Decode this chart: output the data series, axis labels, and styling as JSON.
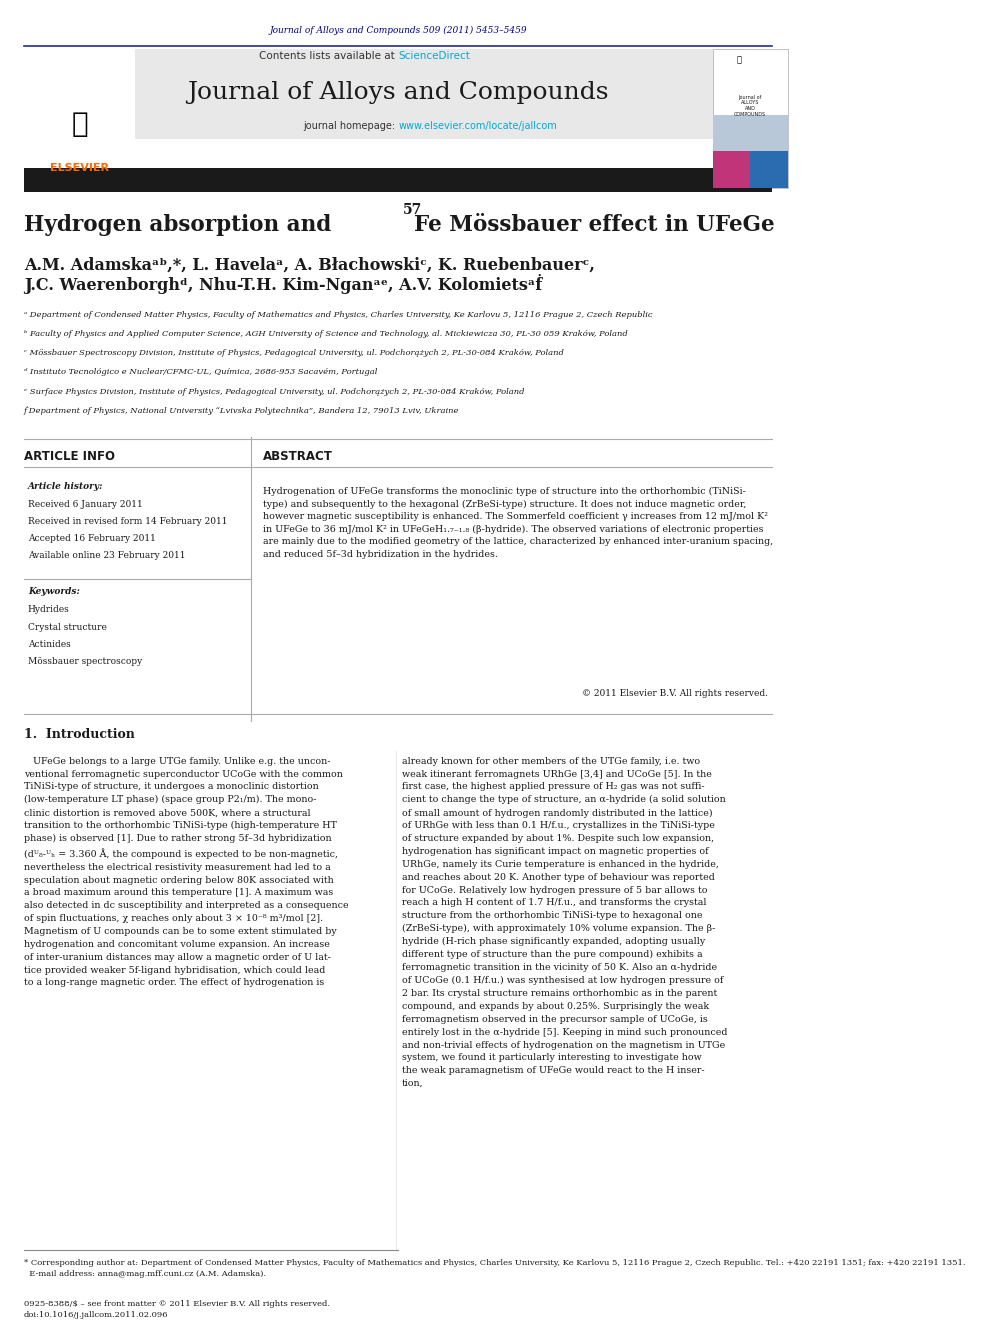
{
  "page_width": 9.92,
  "page_height": 13.23,
  "background_color": "#ffffff",
  "journal_ref_text": "Journal of Alloys and Compounds 509 (2011) 5453–5459",
  "journal_ref_color": "#00008B",
  "contents_text": "Contents lists available at",
  "sciencedirect_text": "ScienceDirect",
  "sciencedirect_color": "#00AADD",
  "journal_name": "Journal of Alloys and Compounds",
  "homepage_text": "journal homepage: ",
  "homepage_url": "www.elsevier.com/locate/jallcom",
  "homepage_url_color": "#00AADD",
  "header_bg": "#E8E8E8",
  "black_bar_color": "#1A1A1A",
  "elsevier_color": "#FF6600",
  "paper_title": "Hydrogen absorption and ⁵⁷Fe Mössbauer effect in UFeGe",
  "authors": "A.M. Adamskaᵃᵇ,*, L. Havelaᵃ, A. Błachowskiᶜ, K. Ruebenbauerᶜ,\nJ.C. Waerenborghᵈ, Nhu-T.H. Kim-Nganᵃᵉ, A.V. Kolomietsᵃḟ",
  "affiliations": [
    "ᵃ Department of Condensed Matter Physics, Faculty of Mathematics and Physics, Charles University, Ke Karlovu 5, 12116 Prague 2, Czech Republic",
    "ᵇ Faculty of Physics and Applied Computer Science, AGH University of Science and Technology, al. Mickiewicza 30, PL-30 059 Kraków, Poland",
    "ᶜ Mössbauer Spectroscopy Division, Institute of Physics, Pedagogical University, ul. Podchorążych 2, PL-30-084 Kraków, Poland",
    "ᵈ Instituto Tecnológico e Nuclear/CFMC-UL, Química, 2686-953 Sacavém, Portugal",
    "ᵉ Surface Physics Division, Institute of Physics, Pedagogical University, ul. Podchorążych 2, PL-30-084 Kraków, Poland",
    "ḟ Department of Physics, National University “Lvivska Polytechnika”, Bandera 12, 79013 Lviv, Ukraine"
  ],
  "article_info_title": "ARTICLE INFO",
  "abstract_title": "ABSTRACT",
  "article_history_title": "Article history:",
  "article_history": [
    "Received 6 January 2011",
    "Received in revised form 14 February 2011",
    "Accepted 16 February 2011",
    "Available online 23 February 2011"
  ],
  "keywords_title": "Keywords:",
  "keywords": [
    "Hydrides",
    "Crystal structure",
    "Actinides",
    "Mössbauer spectroscopy"
  ],
  "abstract_text": "Hydrogenation of UFeGe transforms the monoclinic type of structure into the orthorhombic (TiNiSi-type) and subsequently to the hexagonal (ZrBeSi-type) structure. It does not induce magnetic order, however magnetic susceptibility is enhanced. The Sommerfeld coefficient γ increases from 12 mJ/mol K² in UFeGe to 36 mJ/mol K² in UFeGeH₁.₇₋₁.₈ (β-hydride). The observed variations of electronic properties are mainly due to the modified geometry of the lattice, characterized by enhanced inter-uranium spacing, and reduced 5f–3d hybridization in the hydrides.",
  "copyright_text": "© 2011 Elsevier B.V. All rights reserved.",
  "intro_title": "1.  Introduction",
  "intro_col1": "UFe Ge belongs to a large UTGe family. Unlike e.g. the unconventional ferromagnetic superconductor UCoGe with the common TiNiSi-type of structure, it undergoes a monoclinic distortion (low-temperature LT phase) (space group P2₁/m). The monoclinic distortion is removed above 500K, where a structural transition to the orthorhombic TiNiSi-type (high-temperature HT phase) is observed [1]. Due to rather strong 5f–3d hybridization (dᵁ₈‐ᵁₕ = 3.360 Å, the compound is expected to be non-magnetic, nevertheless the electrical resistivity measurement had led to a speculation about magnetic ordering below 80K associated with a broad maximum around this temperature [1]. A maximum was also detected in dc susceptibility and interpreted as a consequence of spin fluctuations, χ reaches only about 3 × 10⁻⁸ m³/mol [2]. Magnetism of U compounds can be to some extent stimulated by hydrogenation and concomitant volume expansion. An increase of inter-uranium distances may allow a magnetic order of U lattice provided weaker 5f-ligand hybridisation, which could lead to a long-range magnetic order. The effect of hydrogenation is",
  "intro_col2": "already known for other members of the UTGe family, i.e. two weak itinerant ferromagnets URhGe [3,4] and UCoGe [5]. In the first case, the highest applied pressure of H₂ gas was not sufficient to change the type of structure, an α-hydride (a solid solution of small amount of hydrogen randomly distributed in the lattice) of URhGe with less than 0.1 H/f.u., crystallizes in the TiNiSi-type of structure expanded by about 1%. Despite such low expansion, hydrogenation has significant impact on magnetic properties of URhGe, namely its Curie temperature is enhanced in the hydride, and reaches about 20 K. Another type of behaviour was reported for UCoGe. Relatively low hydrogen pressure of 5 bar allows to reach a high H content of 1.7 H/f.u., and transforms the crystal structure from the orthorhombic TiNiSi-type to hexagonal one (ZrBeSi-type), with approximately 10% volume expansion. The β-hydride (H-rich phase significantly expanded, adopting usually different type of structure than the pure compound) exhibits a ferromagnetic transition in the vicinity of 50 K. Also an α-hydride of UCoGe (0.1 H/f.u.) was synthesised at low hydrogen pressure of 2 bar. Its crystal structure remains orthorhombic as in the parent compound, and expands by about 0.25%. Surprisingly the weak ferromagnetism observed in the precursor sample of UCoGe, is entirely lost in the α-hydride [5]. Keeping in mind such pronounced and non-trivial effects of hydrogenation on the magnetism in UTGe system, we found it particularly interesting to investigate how the weak paramagnetism of UFeGe would react to the H insertion,",
  "footnote_text": "* Corresponding author at: Department of Condensed Matter Physics, Faculty of Mathematics and Physics, Charles University, Ke Karlovu 5, 12116 Prague 2, Czech Republic. Tel.: +420 22191 1351; fax: +420 22191 1351.\n  E-mail address: anna@mag.mff.cuni.cz (A.M. Adamska).",
  "bottom_text": "0925-8388/$ – see front matter © 2011 Elsevier B.V. All rights reserved.\ndoi:10.1016/j.jallcom.2011.02.096"
}
